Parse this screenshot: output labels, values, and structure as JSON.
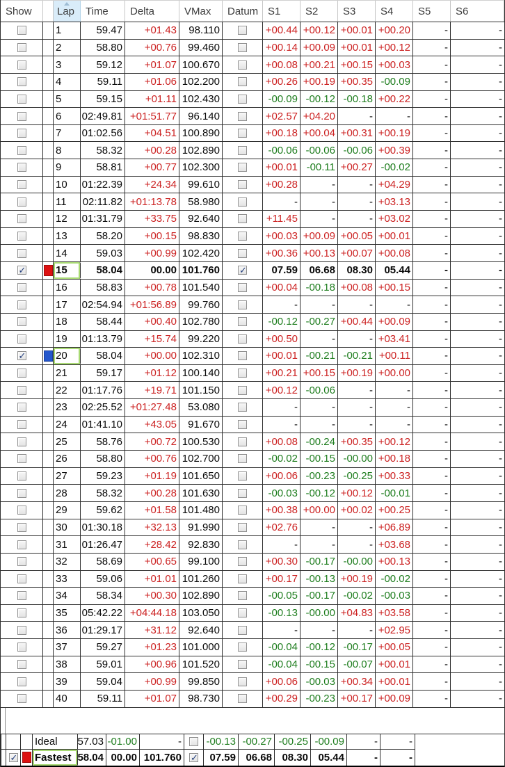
{
  "columns": [
    "Show",
    "",
    "Lap",
    "Time",
    "Delta",
    "VMax",
    "Datum",
    "S1",
    "S2",
    "S3",
    "S4",
    "S5",
    "S6"
  ],
  "colors": {
    "positive": "#cc2222",
    "negative": "#1e7d1e",
    "neutral": "#0a0a0a",
    "swatch_red": "#dd1111",
    "swatch_blue": "#2356cc",
    "highlight_box": "#a9da74",
    "sorted_header_bg": "#d9ecf9"
  },
  "sort": {
    "column": "Lap",
    "direction": "ascending"
  },
  "rows": [
    {
      "lap": "1",
      "time": "59.47",
      "delta": "+01.43",
      "vmax": "98.110",
      "s1": "+00.44",
      "s2": "+00.12",
      "s3": "+00.01",
      "s4": "+00.20",
      "s5": "-",
      "s6": "-",
      "show": false,
      "datum": false,
      "swatch": null,
      "bold": false,
      "boxed": false
    },
    {
      "lap": "2",
      "time": "58.80",
      "delta": "+00.76",
      "vmax": "99.460",
      "s1": "+00.14",
      "s2": "+00.09",
      "s3": "+00.01",
      "s4": "+00.12",
      "s5": "-",
      "s6": "-",
      "show": false,
      "datum": false,
      "swatch": null,
      "bold": false,
      "boxed": false
    },
    {
      "lap": "3",
      "time": "59.12",
      "delta": "+01.07",
      "vmax": "100.670",
      "s1": "+00.08",
      "s2": "+00.21",
      "s3": "+00.15",
      "s4": "+00.03",
      "s5": "-",
      "s6": "-",
      "show": false,
      "datum": false,
      "swatch": null,
      "bold": false,
      "boxed": false
    },
    {
      "lap": "4",
      "time": "59.11",
      "delta": "+01.06",
      "vmax": "102.200",
      "s1": "+00.26",
      "s2": "+00.19",
      "s3": "+00.35",
      "s4": "-00.09",
      "s5": "-",
      "s6": "-",
      "show": false,
      "datum": false,
      "swatch": null,
      "bold": false,
      "boxed": false
    },
    {
      "lap": "5",
      "time": "59.15",
      "delta": "+01.11",
      "vmax": "102.430",
      "s1": "-00.09",
      "s2": "-00.12",
      "s3": "-00.18",
      "s4": "+00.22",
      "s5": "-",
      "s6": "-",
      "show": false,
      "datum": false,
      "swatch": null,
      "bold": false,
      "boxed": false
    },
    {
      "lap": "6",
      "time": "02:49.81",
      "delta": "+01:51.77",
      "vmax": "96.140",
      "s1": "+02.57",
      "s2": "+04.20",
      "s3": "-",
      "s4": "-",
      "s5": "-",
      "s6": "-",
      "show": false,
      "datum": false,
      "swatch": null,
      "bold": false,
      "boxed": false
    },
    {
      "lap": "7",
      "time": "01:02.56",
      "delta": "+04.51",
      "vmax": "100.890",
      "s1": "+00.18",
      "s2": "+00.04",
      "s3": "+00.31",
      "s4": "+00.19",
      "s5": "-",
      "s6": "-",
      "show": false,
      "datum": false,
      "swatch": null,
      "bold": false,
      "boxed": false
    },
    {
      "lap": "8",
      "time": "58.32",
      "delta": "+00.28",
      "vmax": "102.890",
      "s1": "-00.06",
      "s2": "-00.06",
      "s3": "-00.06",
      "s4": "+00.39",
      "s5": "-",
      "s6": "-",
      "show": false,
      "datum": false,
      "swatch": null,
      "bold": false,
      "boxed": false
    },
    {
      "lap": "9",
      "time": "58.81",
      "delta": "+00.77",
      "vmax": "102.300",
      "s1": "+00.01",
      "s2": "-00.11",
      "s3": "+00.27",
      "s4": "-00.02",
      "s5": "-",
      "s6": "-",
      "show": false,
      "datum": false,
      "swatch": null,
      "bold": false,
      "boxed": false
    },
    {
      "lap": "10",
      "time": "01:22.39",
      "delta": "+24.34",
      "vmax": "99.610",
      "s1": "+00.28",
      "s2": "-",
      "s3": "-",
      "s4": "+04.29",
      "s5": "-",
      "s6": "-",
      "show": false,
      "datum": false,
      "swatch": null,
      "bold": false,
      "boxed": false
    },
    {
      "lap": "11",
      "time": "02:11.82",
      "delta": "+01:13.78",
      "vmax": "58.980",
      "s1": "-",
      "s2": "-",
      "s3": "-",
      "s4": "+03.13",
      "s5": "-",
      "s6": "-",
      "show": false,
      "datum": false,
      "swatch": null,
      "bold": false,
      "boxed": false
    },
    {
      "lap": "12",
      "time": "01:31.79",
      "delta": "+33.75",
      "vmax": "92.640",
      "s1": "+11.45",
      "s2": "-",
      "s3": "-",
      "s4": "+03.02",
      "s5": "-",
      "s6": "-",
      "show": false,
      "datum": false,
      "swatch": null,
      "bold": false,
      "boxed": false
    },
    {
      "lap": "13",
      "time": "58.20",
      "delta": "+00.15",
      "vmax": "98.830",
      "s1": "+00.03",
      "s2": "+00.09",
      "s3": "+00.05",
      "s4": "+00.01",
      "s5": "-",
      "s6": "-",
      "show": false,
      "datum": false,
      "swatch": null,
      "bold": false,
      "boxed": false
    },
    {
      "lap": "14",
      "time": "59.03",
      "delta": "+00.99",
      "vmax": "102.420",
      "s1": "+00.36",
      "s2": "+00.13",
      "s3": "+00.07",
      "s4": "+00.08",
      "s5": "-",
      "s6": "-",
      "show": false,
      "datum": false,
      "swatch": null,
      "bold": false,
      "boxed": false
    },
    {
      "lap": "15",
      "time": "58.04",
      "delta": "00.00",
      "vmax": "101.760",
      "s1": "07.59",
      "s2": "06.68",
      "s3": "08.30",
      "s4": "05.44",
      "s5": "-",
      "s6": "-",
      "show": true,
      "datum": true,
      "swatch": "red",
      "bold": true,
      "boxed": true
    },
    {
      "lap": "16",
      "time": "58.83",
      "delta": "+00.78",
      "vmax": "101.540",
      "s1": "+00.04",
      "s2": "-00.18",
      "s3": "+00.08",
      "s4": "+00.15",
      "s5": "-",
      "s6": "-",
      "show": false,
      "datum": false,
      "swatch": null,
      "bold": false,
      "boxed": false
    },
    {
      "lap": "17",
      "time": "02:54.94",
      "delta": "+01:56.89",
      "vmax": "99.760",
      "s1": "-",
      "s2": "-",
      "s3": "-",
      "s4": "-",
      "s5": "-",
      "s6": "-",
      "show": false,
      "datum": false,
      "swatch": null,
      "bold": false,
      "boxed": false
    },
    {
      "lap": "18",
      "time": "58.44",
      "delta": "+00.40",
      "vmax": "102.780",
      "s1": "-00.12",
      "s2": "-00.27",
      "s3": "+00.44",
      "s4": "+00.09",
      "s5": "-",
      "s6": "-",
      "show": false,
      "datum": false,
      "swatch": null,
      "bold": false,
      "boxed": false
    },
    {
      "lap": "19",
      "time": "01:13.79",
      "delta": "+15.74",
      "vmax": "99.220",
      "s1": "+00.50",
      "s2": "-",
      "s3": "-",
      "s4": "+03.41",
      "s5": "-",
      "s6": "-",
      "show": false,
      "datum": false,
      "swatch": null,
      "bold": false,
      "boxed": false
    },
    {
      "lap": "20",
      "time": "58.04",
      "delta": "+00.00",
      "vmax": "102.310",
      "s1": "+00.01",
      "s2": "-00.21",
      "s3": "-00.21",
      "s4": "+00.11",
      "s5": "-",
      "s6": "-",
      "show": true,
      "datum": false,
      "swatch": "blue",
      "bold": false,
      "boxed": true
    },
    {
      "lap": "21",
      "time": "59.17",
      "delta": "+01.12",
      "vmax": "100.140",
      "s1": "+00.21",
      "s2": "+00.15",
      "s3": "+00.19",
      "s4": "+00.00",
      "s5": "-",
      "s6": "-",
      "show": false,
      "datum": false,
      "swatch": null,
      "bold": false,
      "boxed": false
    },
    {
      "lap": "22",
      "time": "01:17.76",
      "delta": "+19.71",
      "vmax": "101.150",
      "s1": "+00.12",
      "s2": "-00.06",
      "s3": "-",
      "s4": "-",
      "s5": "-",
      "s6": "-",
      "show": false,
      "datum": false,
      "swatch": null,
      "bold": false,
      "boxed": false
    },
    {
      "lap": "23",
      "time": "02:25.52",
      "delta": "+01:27.48",
      "vmax": "53.080",
      "s1": "-",
      "s2": "-",
      "s3": "-",
      "s4": "-",
      "s5": "-",
      "s6": "-",
      "show": false,
      "datum": false,
      "swatch": null,
      "bold": false,
      "boxed": false
    },
    {
      "lap": "24",
      "time": "01:41.10",
      "delta": "+43.05",
      "vmax": "91.670",
      "s1": "-",
      "s2": "-",
      "s3": "-",
      "s4": "-",
      "s5": "-",
      "s6": "-",
      "show": false,
      "datum": false,
      "swatch": null,
      "bold": false,
      "boxed": false
    },
    {
      "lap": "25",
      "time": "58.76",
      "delta": "+00.72",
      "vmax": "100.530",
      "s1": "+00.08",
      "s2": "-00.24",
      "s3": "+00.35",
      "s4": "+00.12",
      "s5": "-",
      "s6": "-",
      "show": false,
      "datum": false,
      "swatch": null,
      "bold": false,
      "boxed": false
    },
    {
      "lap": "26",
      "time": "58.80",
      "delta": "+00.76",
      "vmax": "102.700",
      "s1": "-00.02",
      "s2": "-00.15",
      "s3": "-00.00",
      "s4": "+00.18",
      "s5": "-",
      "s6": "-",
      "show": false,
      "datum": false,
      "swatch": null,
      "bold": false,
      "boxed": false
    },
    {
      "lap": "27",
      "time": "59.23",
      "delta": "+01.19",
      "vmax": "101.650",
      "s1": "+00.06",
      "s2": "-00.23",
      "s3": "-00.25",
      "s4": "+00.33",
      "s5": "-",
      "s6": "-",
      "show": false,
      "datum": false,
      "swatch": null,
      "bold": false,
      "boxed": false
    },
    {
      "lap": "28",
      "time": "58.32",
      "delta": "+00.28",
      "vmax": "101.630",
      "s1": "-00.03",
      "s2": "-00.12",
      "s3": "+00.12",
      "s4": "-00.01",
      "s5": "-",
      "s6": "-",
      "show": false,
      "datum": false,
      "swatch": null,
      "bold": false,
      "boxed": false
    },
    {
      "lap": "29",
      "time": "59.62",
      "delta": "+01.58",
      "vmax": "101.480",
      "s1": "+00.38",
      "s2": "+00.00",
      "s3": "+00.02",
      "s4": "+00.25",
      "s5": "-",
      "s6": "-",
      "show": false,
      "datum": false,
      "swatch": null,
      "bold": false,
      "boxed": false
    },
    {
      "lap": "30",
      "time": "01:30.18",
      "delta": "+32.13",
      "vmax": "91.990",
      "s1": "+02.76",
      "s2": "-",
      "s3": "-",
      "s4": "+06.89",
      "s5": "-",
      "s6": "-",
      "show": false,
      "datum": false,
      "swatch": null,
      "bold": false,
      "boxed": false
    },
    {
      "lap": "31",
      "time": "01:26.47",
      "delta": "+28.42",
      "vmax": "92.830",
      "s1": "-",
      "s2": "-",
      "s3": "-",
      "s4": "+03.68",
      "s5": "-",
      "s6": "-",
      "show": false,
      "datum": false,
      "swatch": null,
      "bold": false,
      "boxed": false
    },
    {
      "lap": "32",
      "time": "58.69",
      "delta": "+00.65",
      "vmax": "99.100",
      "s1": "+00.30",
      "s2": "-00.17",
      "s3": "-00.00",
      "s4": "+00.13",
      "s5": "-",
      "s6": "-",
      "show": false,
      "datum": false,
      "swatch": null,
      "bold": false,
      "boxed": false
    },
    {
      "lap": "33",
      "time": "59.06",
      "delta": "+01.01",
      "vmax": "101.260",
      "s1": "+00.17",
      "s2": "-00.13",
      "s3": "+00.19",
      "s4": "-00.02",
      "s5": "-",
      "s6": "-",
      "show": false,
      "datum": false,
      "swatch": null,
      "bold": false,
      "boxed": false
    },
    {
      "lap": "34",
      "time": "58.34",
      "delta": "+00.30",
      "vmax": "102.890",
      "s1": "-00.05",
      "s2": "-00.17",
      "s3": "-00.02",
      "s4": "-00.03",
      "s5": "-",
      "s6": "-",
      "show": false,
      "datum": false,
      "swatch": null,
      "bold": false,
      "boxed": false
    },
    {
      "lap": "35",
      "time": "05:42.22",
      "delta": "+04:44.18",
      "vmax": "103.050",
      "s1": "-00.13",
      "s2": "-00.00",
      "s3": "+04.83",
      "s4": "+03.58",
      "s5": "-",
      "s6": "-",
      "show": false,
      "datum": false,
      "swatch": null,
      "bold": false,
      "boxed": false
    },
    {
      "lap": "36",
      "time": "01:29.17",
      "delta": "+31.12",
      "vmax": "92.640",
      "s1": "-",
      "s2": "-",
      "s3": "-",
      "s4": "+02.95",
      "s5": "-",
      "s6": "-",
      "show": false,
      "datum": false,
      "swatch": null,
      "bold": false,
      "boxed": false
    },
    {
      "lap": "37",
      "time": "59.27",
      "delta": "+01.23",
      "vmax": "101.000",
      "s1": "-00.04",
      "s2": "-00.12",
      "s3": "-00.17",
      "s4": "+00.05",
      "s5": "-",
      "s6": "-",
      "show": false,
      "datum": false,
      "swatch": null,
      "bold": false,
      "boxed": false
    },
    {
      "lap": "38",
      "time": "59.01",
      "delta": "+00.96",
      "vmax": "101.520",
      "s1": "-00.04",
      "s2": "-00.15",
      "s3": "-00.07",
      "s4": "+00.01",
      "s5": "-",
      "s6": "-",
      "show": false,
      "datum": false,
      "swatch": null,
      "bold": false,
      "boxed": false
    },
    {
      "lap": "39",
      "time": "59.04",
      "delta": "+00.99",
      "vmax": "99.850",
      "s1": "+00.06",
      "s2": "-00.03",
      "s3": "+00.34",
      "s4": "+00.01",
      "s5": "-",
      "s6": "-",
      "show": false,
      "datum": false,
      "swatch": null,
      "bold": false,
      "boxed": false
    },
    {
      "lap": "40",
      "time": "59.11",
      "delta": "+01.07",
      "vmax": "98.730",
      "s1": "+00.29",
      "s2": "-00.23",
      "s3": "+00.17",
      "s4": "+00.09",
      "s5": "-",
      "s6": "-",
      "show": false,
      "datum": false,
      "swatch": null,
      "bold": false,
      "boxed": false
    }
  ],
  "footer": [
    {
      "label": "Ideal",
      "time": "57.03",
      "delta": "-01.00",
      "vmax": "-",
      "s1": "-00.13",
      "s2": "-00.27",
      "s3": "-00.25",
      "s4": "-00.09",
      "s5": "-",
      "s6": "-",
      "show": null,
      "datum": false,
      "swatch": null,
      "bold": false,
      "boxed": false
    },
    {
      "label": "Fastest",
      "time": "58.04",
      "delta": "00.00",
      "vmax": "101.760",
      "s1": "07.59",
      "s2": "06.68",
      "s3": "08.30",
      "s4": "05.44",
      "s5": "-",
      "s6": "-",
      "show": true,
      "datum": true,
      "swatch": "red",
      "bold": true,
      "boxed": true
    }
  ]
}
